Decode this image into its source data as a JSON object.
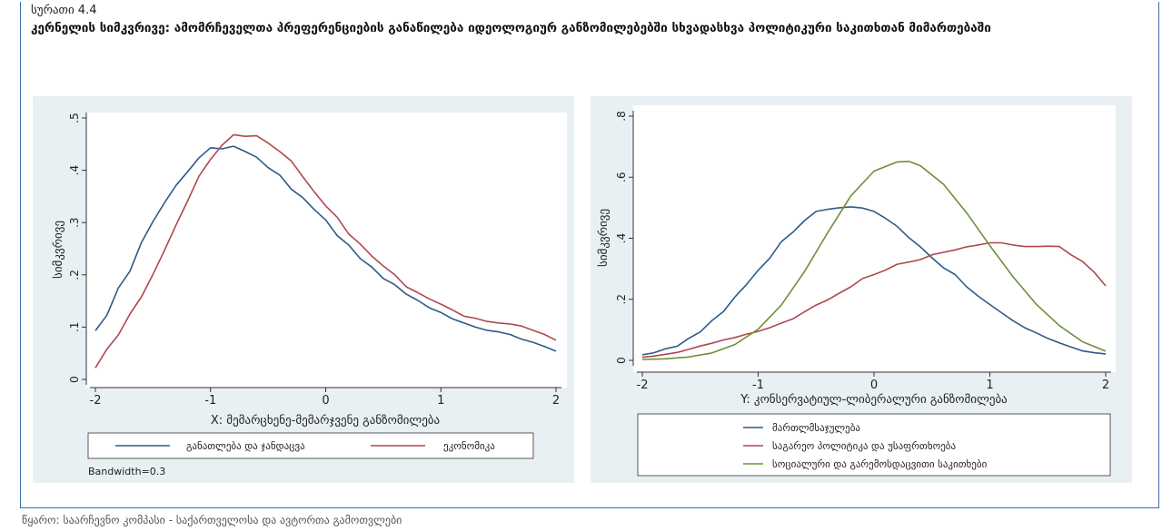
{
  "figure": {
    "label": "სურათი 4.4",
    "title": "კერნელის სიმკვრივე: ამომრჩეველთა პრეფერენციების განაწილება იდეოლოგიურ განზომილებებში სხვადასხვა პოლიტიკური საკითხთან მიმართებაში",
    "source": "წყარო: საარჩევნო კომპასი - საქართველოსა და ავტორთა გამოთვლები"
  },
  "chart_data": [
    {
      "type": "line",
      "xlabel": "X: მემარცხენე-მემარჯვენე განზომილება",
      "ylabel": "სიმკვრივე",
      "xlim": [
        -2,
        2
      ],
      "ylim": [
        0,
        0.5
      ],
      "xticks": [
        "-2",
        "-1",
        "0",
        "1",
        "2"
      ],
      "yticks": [
        "0",
        ".1",
        ".2",
        ".3",
        ".4",
        ".5"
      ],
      "note": "Bandwidth=0.3",
      "legend_position": "bottom",
      "series": [
        {
          "name": "განათლება და ჯანდაცვა",
          "color": "#2e5a87",
          "x": [
            -2,
            -1.9,
            -1.8,
            -1.7,
            -1.6,
            -1.5,
            -1.4,
            -1.3,
            -1.2,
            -1.1,
            -1.0,
            -0.9,
            -0.8,
            -0.7,
            -0.6,
            -0.5,
            -0.4,
            -0.3,
            -0.2,
            -0.1,
            0,
            0.1,
            0.2,
            0.3,
            0.4,
            0.5,
            0.6,
            0.7,
            0.8,
            0.9,
            1.0,
            1.1,
            1.2,
            1.3,
            1.4,
            1.5,
            1.6,
            1.7,
            1.8,
            1.9,
            2.0
          ],
          "y": [
            0.093,
            0.123,
            0.175,
            0.207,
            0.262,
            0.302,
            0.338,
            0.371,
            0.397,
            0.424,
            0.443,
            0.441,
            0.446,
            0.436,
            0.425,
            0.405,
            0.391,
            0.364,
            0.348,
            0.325,
            0.305,
            0.275,
            0.257,
            0.231,
            0.215,
            0.193,
            0.181,
            0.163,
            0.151,
            0.137,
            0.128,
            0.116,
            0.108,
            0.1,
            0.094,
            0.091,
            0.086,
            0.077,
            0.071,
            0.063,
            0.054
          ]
        },
        {
          "name": "ეკონომიკა",
          "color": "#b0474e",
          "x": [
            -2,
            -1.9,
            -1.8,
            -1.7,
            -1.6,
            -1.5,
            -1.4,
            -1.3,
            -1.2,
            -1.1,
            -1.0,
            -0.9,
            -0.8,
            -0.7,
            -0.6,
            -0.5,
            -0.4,
            -0.3,
            -0.2,
            -0.1,
            0,
            0.1,
            0.2,
            0.3,
            0.4,
            0.5,
            0.6,
            0.7,
            0.8,
            0.9,
            1.0,
            1.1,
            1.2,
            1.3,
            1.4,
            1.5,
            1.6,
            1.7,
            1.8,
            1.9,
            2.0
          ],
          "y": [
            0.022,
            0.058,
            0.085,
            0.125,
            0.158,
            0.201,
            0.247,
            0.295,
            0.341,
            0.389,
            0.421,
            0.448,
            0.468,
            0.465,
            0.466,
            0.452,
            0.436,
            0.418,
            0.388,
            0.359,
            0.332,
            0.31,
            0.278,
            0.259,
            0.236,
            0.217,
            0.2,
            0.177,
            0.166,
            0.154,
            0.144,
            0.133,
            0.121,
            0.117,
            0.111,
            0.108,
            0.106,
            0.102,
            0.094,
            0.086,
            0.075
          ]
        }
      ]
    },
    {
      "type": "line",
      "xlabel": "Y: კონსერვატიულ-ლიბერალური განზომილება",
      "ylabel": "სიმკვრივე",
      "xlim": [
        -2,
        2
      ],
      "ylim": [
        0,
        0.8
      ],
      "xticks": [
        "-2",
        "-1",
        "0",
        "1",
        "2"
      ],
      "yticks": [
        "0",
        ".2",
        ".4",
        ".6",
        ".8"
      ],
      "legend_position": "bottom",
      "series": [
        {
          "name": "მართლმსაჯულება",
          "color": "#2e5a87",
          "x": [
            -2,
            -1.9,
            -1.8,
            -1.7,
            -1.6,
            -1.5,
            -1.4,
            -1.3,
            -1.2,
            -1.1,
            -1.0,
            -0.9,
            -0.8,
            -0.7,
            -0.6,
            -0.5,
            -0.4,
            -0.3,
            -0.2,
            -0.1,
            0,
            0.1,
            0.2,
            0.3,
            0.4,
            0.5,
            0.6,
            0.7,
            0.8,
            0.9,
            1.0,
            1.1,
            1.2,
            1.3,
            1.4,
            1.5,
            1.6,
            1.7,
            1.8,
            1.9,
            2.0
          ],
          "y": [
            0.018,
            0.025,
            0.038,
            0.046,
            0.072,
            0.093,
            0.13,
            0.16,
            0.208,
            0.249,
            0.295,
            0.335,
            0.389,
            0.42,
            0.458,
            0.488,
            0.495,
            0.5,
            0.503,
            0.499,
            0.488,
            0.465,
            0.439,
            0.402,
            0.372,
            0.336,
            0.303,
            0.281,
            0.241,
            0.21,
            0.183,
            0.156,
            0.13,
            0.107,
            0.09,
            0.072,
            0.057,
            0.044,
            0.031,
            0.025,
            0.021
          ]
        },
        {
          "name": "საგარეო პოლიტიკა და უსაფრთხოება",
          "color": "#b0474e",
          "x": [
            -2,
            -1.9,
            -1.8,
            -1.7,
            -1.6,
            -1.5,
            -1.4,
            -1.3,
            -1.2,
            -1.1,
            -1.0,
            -0.9,
            -0.8,
            -0.7,
            -0.6,
            -0.5,
            -0.4,
            -0.3,
            -0.2,
            -0.1,
            0,
            0.1,
            0.2,
            0.3,
            0.4,
            0.5,
            0.6,
            0.7,
            0.8,
            0.9,
            1.0,
            1.1,
            1.2,
            1.3,
            1.4,
            1.5,
            1.6,
            1.7,
            1.8,
            1.9,
            2.0
          ],
          "y": [
            0.01,
            0.014,
            0.02,
            0.026,
            0.036,
            0.047,
            0.056,
            0.067,
            0.075,
            0.086,
            0.095,
            0.107,
            0.122,
            0.136,
            0.159,
            0.181,
            0.198,
            0.22,
            0.241,
            0.268,
            0.281,
            0.296,
            0.315,
            0.322,
            0.33,
            0.346,
            0.354,
            0.362,
            0.372,
            0.378,
            0.385,
            0.385,
            0.378,
            0.373,
            0.373,
            0.374,
            0.373,
            0.346,
            0.324,
            0.289,
            0.244
          ]
        },
        {
          "name": "სოციალური და გარემოსდაცვითი საკითხები",
          "color": "#6e8f3a",
          "x": [
            -2,
            -1.8,
            -1.6,
            -1.4,
            -1.2,
            -1.0,
            -0.8,
            -0.6,
            -0.4,
            -0.2,
            0,
            0.2,
            0.3,
            0.4,
            0.6,
            0.8,
            1.0,
            1.2,
            1.4,
            1.6,
            1.8,
            2.0
          ],
          "y": [
            0.003,
            0.005,
            0.011,
            0.024,
            0.052,
            0.102,
            0.181,
            0.291,
            0.418,
            0.539,
            0.62,
            0.65,
            0.652,
            0.638,
            0.577,
            0.483,
            0.376,
            0.274,
            0.184,
            0.114,
            0.061,
            0.03
          ]
        }
      ]
    }
  ]
}
